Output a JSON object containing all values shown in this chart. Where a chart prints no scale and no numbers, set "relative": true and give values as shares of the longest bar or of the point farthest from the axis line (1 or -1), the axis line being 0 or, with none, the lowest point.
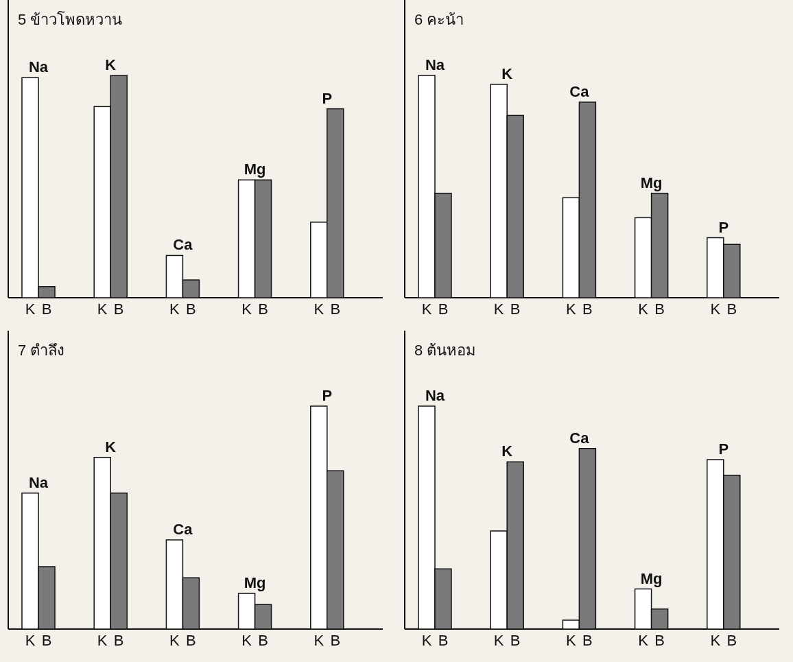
{
  "chart_data": [
    {
      "type": "bar",
      "title": "5 ข้าวโพดหวาน",
      "relative": true,
      "categories": [
        "Na",
        "K",
        "Ca",
        "Mg",
        "P"
      ],
      "series": [
        {
          "name": "K",
          "color": "#ffffff",
          "values": [
            0.99,
            0.86,
            0.19,
            0.53,
            0.34
          ]
        },
        {
          "name": "B",
          "color": "#7a7a7a",
          "values": [
            0.05,
            1,
            0.08,
            0.53,
            0.85
          ]
        }
      ]
    },
    {
      "type": "bar",
      "title": "6 คะน้า",
      "relative": true,
      "categories": [
        "Na",
        "K",
        "Ca",
        "Mg",
        "P"
      ],
      "series": [
        {
          "name": "K",
          "color": "#ffffff",
          "values": [
            1,
            0.96,
            0.45,
            0.36,
            0.27
          ]
        },
        {
          "name": "B",
          "color": "#7a7a7a",
          "values": [
            0.47,
            0.82,
            0.88,
            0.47,
            0.24
          ]
        }
      ]
    },
    {
      "type": "bar",
      "title": "7 ตำลึง",
      "relative": true,
      "categories": [
        "Na",
        "K",
        "Ca",
        "Mg",
        "P"
      ],
      "series": [
        {
          "name": "K",
          "color": "#ffffff",
          "values": [
            0.61,
            0.77,
            0.4,
            0.16,
            1
          ]
        },
        {
          "name": "B",
          "color": "#7a7a7a",
          "values": [
            0.28,
            0.61,
            0.23,
            0.11,
            0.71
          ]
        }
      ]
    },
    {
      "type": "bar",
      "title": "8 ต้นหอม",
      "relative": true,
      "categories": [
        "Na",
        "K",
        "Ca",
        "Mg",
        "P"
      ],
      "series": [
        {
          "name": "K",
          "color": "#ffffff",
          "values": [
            1,
            0.44,
            0.04,
            0.18,
            0.76
          ]
        },
        {
          "name": "B",
          "color": "#7a7a7a",
          "values": [
            0.27,
            0.75,
            0.81,
            0.09,
            0.69
          ]
        }
      ]
    }
  ]
}
